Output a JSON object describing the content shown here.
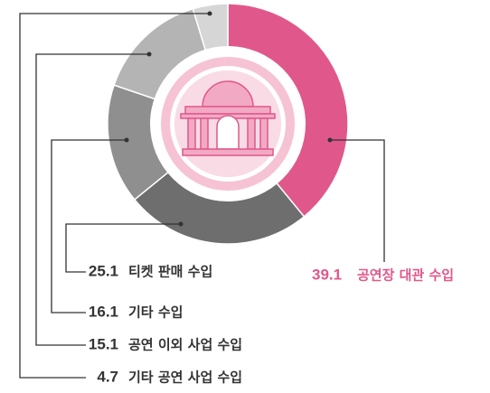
{
  "chart_data": {
    "type": "pie",
    "categories": [
      "공연장 대관 수입",
      "티켓 판매 수입",
      "기타 수입",
      "공연 이외 사업 수입",
      "기타 공연 사업 수입"
    ],
    "values": [
      39.1,
      25.1,
      16.1,
      15.1,
      4.7
    ],
    "colors": [
      "#e0588b",
      "#6e6e6e",
      "#8f8f8f",
      "#b4b4b4",
      "#d6d6d6"
    ]
  }
}
